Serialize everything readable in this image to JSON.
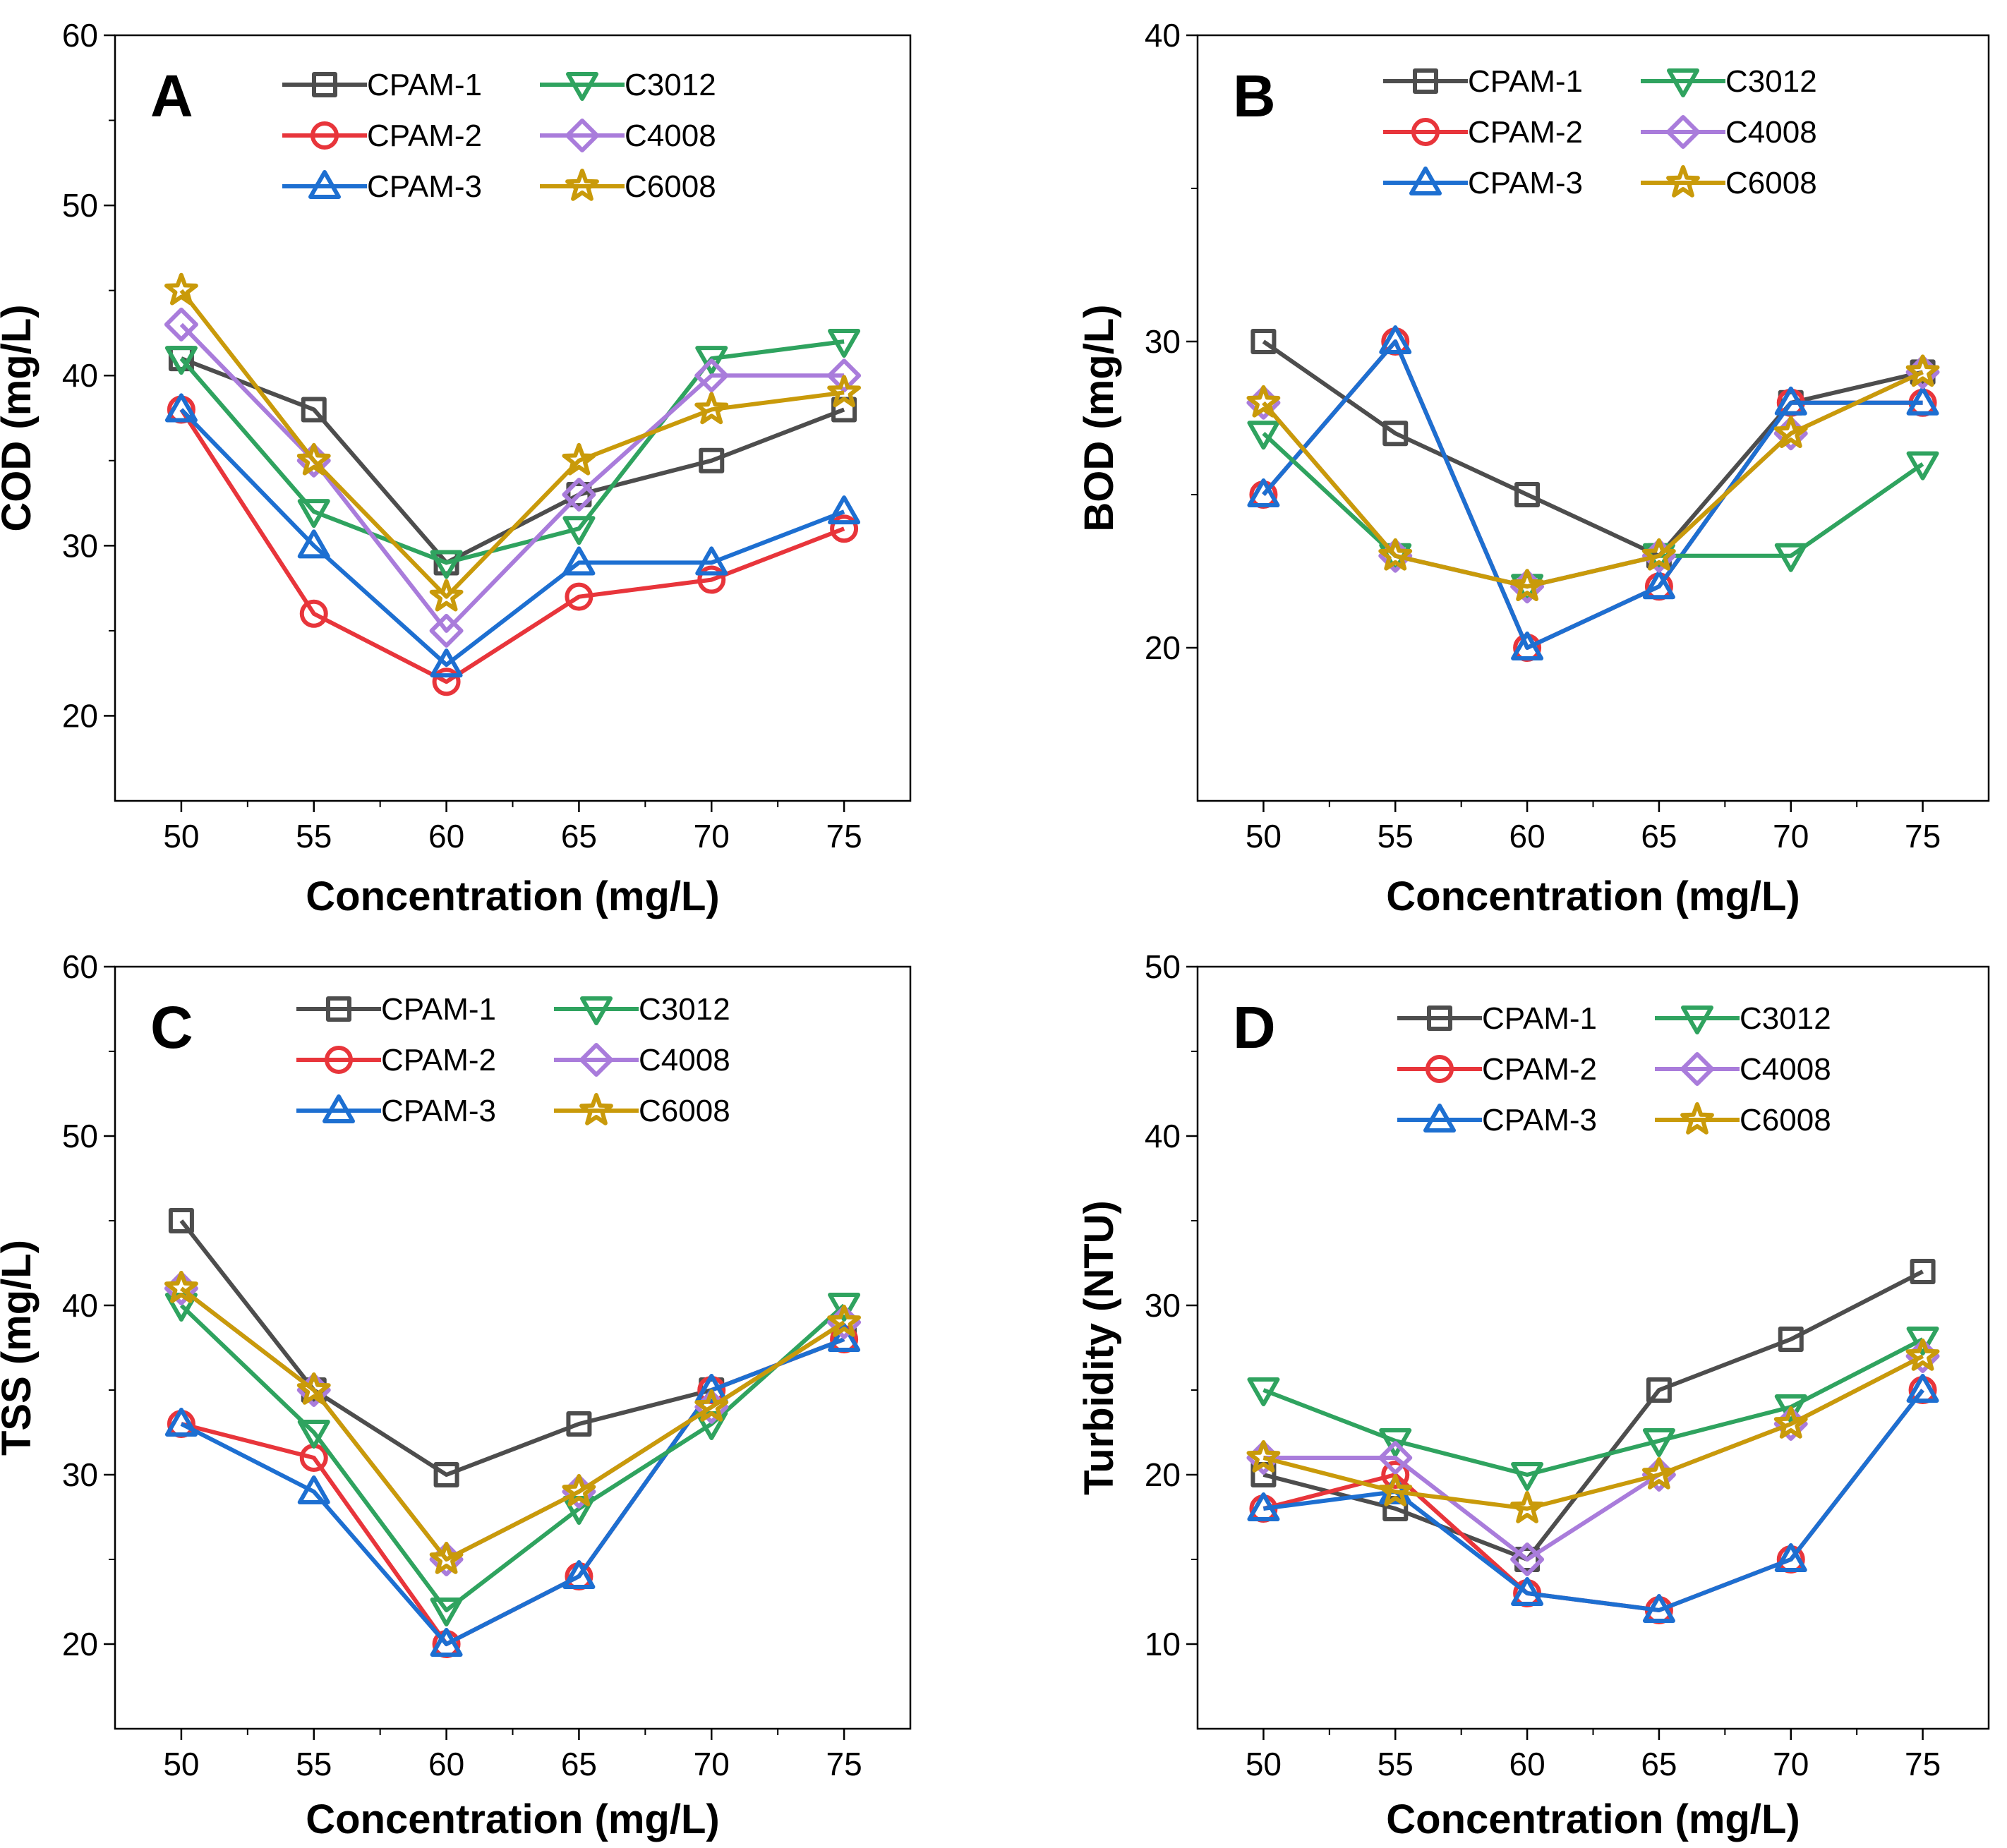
{
  "series_styles": [
    {
      "name": "CPAM-1",
      "color": "#4d4d4d",
      "marker": "square"
    },
    {
      "name": "CPAM-2",
      "color": "#e8353b",
      "marker": "circle"
    },
    {
      "name": "CPAM-3",
      "color": "#1d6fd1",
      "marker": "triangle-up"
    },
    {
      "name": "C3012",
      "color": "#2fa35f",
      "marker": "triangle-down"
    },
    {
      "name": "C4008",
      "color": "#a97cdb",
      "marker": "diamond"
    },
    {
      "name": "C6008",
      "color": "#c99a0a",
      "marker": "star"
    }
  ],
  "chart_data": [
    {
      "type": "line",
      "panel": "A",
      "title": "",
      "xlabel": "Concentration (mg/L)",
      "ylabel": "COD (mg/L)",
      "x": [
        50,
        55,
        60,
        65,
        70,
        75
      ],
      "xlim": [
        47.5,
        77.5
      ],
      "ylim": [
        15,
        60
      ],
      "yticks": [
        20,
        30,
        40,
        50,
        60
      ],
      "legend": "top-center",
      "series": [
        {
          "name": "CPAM-1",
          "values": [
            41,
            38,
            29,
            33,
            35,
            38
          ]
        },
        {
          "name": "CPAM-2",
          "values": [
            38,
            26,
            22,
            27,
            28,
            31
          ]
        },
        {
          "name": "CPAM-3",
          "values": [
            38,
            30,
            23,
            29,
            29,
            32
          ]
        },
        {
          "name": "C3012",
          "values": [
            41,
            32,
            29,
            31,
            41,
            42
          ]
        },
        {
          "name": "C4008",
          "values": [
            43,
            35,
            25,
            33,
            40,
            40
          ]
        },
        {
          "name": "C6008",
          "values": [
            45,
            35,
            27,
            35,
            38,
            39
          ]
        }
      ]
    },
    {
      "type": "line",
      "panel": "B",
      "title": "",
      "xlabel": "Concentration (mg/L)",
      "ylabel": "BOD (mg/L)",
      "x": [
        50,
        55,
        60,
        65,
        70,
        75
      ],
      "xlim": [
        47.5,
        77.5
      ],
      "ylim": [
        15,
        40
      ],
      "yticks": [
        20,
        30,
        40
      ],
      "legend": "top-center",
      "series": [
        {
          "name": "CPAM-1",
          "values": [
            30,
            27,
            25,
            23,
            28,
            29
          ]
        },
        {
          "name": "CPAM-2",
          "values": [
            25,
            30,
            20,
            22,
            28,
            28
          ]
        },
        {
          "name": "CPAM-3",
          "values": [
            25,
            30,
            20,
            22,
            28,
            28
          ]
        },
        {
          "name": "C3012",
          "values": [
            27,
            23,
            22,
            23,
            23,
            26
          ]
        },
        {
          "name": "C4008",
          "values": [
            28,
            23,
            22,
            23,
            27,
            29
          ]
        },
        {
          "name": "C6008",
          "values": [
            28,
            23,
            22,
            23,
            27,
            29
          ]
        }
      ]
    },
    {
      "type": "line",
      "panel": "C",
      "title": "",
      "xlabel": "Concentration (mg/L)",
      "ylabel": "TSS (mg/L)",
      "x": [
        50,
        55,
        60,
        65,
        70,
        75
      ],
      "xlim": [
        47.5,
        77.5
      ],
      "ylim": [
        15,
        60
      ],
      "yticks": [
        20,
        30,
        40,
        50,
        60
      ],
      "legend": "top-center",
      "series": [
        {
          "name": "CPAM-1",
          "values": [
            45,
            35,
            30,
            33,
            35,
            38
          ]
        },
        {
          "name": "CPAM-2",
          "values": [
            33,
            31,
            20,
            24,
            35,
            38
          ]
        },
        {
          "name": "CPAM-3",
          "values": [
            33,
            29,
            20,
            24,
            35,
            38
          ]
        },
        {
          "name": "C3012",
          "values": [
            40,
            32.5,
            22,
            28,
            33,
            40
          ]
        },
        {
          "name": "C4008",
          "values": [
            41,
            35,
            25,
            29,
            34,
            39
          ]
        },
        {
          "name": "C6008",
          "values": [
            41,
            35,
            25,
            29,
            34,
            39
          ]
        }
      ]
    },
    {
      "type": "line",
      "panel": "D",
      "title": "",
      "xlabel": "Concentration (mg/L)",
      "ylabel": "Turbidity (NTU)",
      "x": [
        50,
        55,
        60,
        65,
        70,
        75
      ],
      "xlim": [
        47.5,
        77.5
      ],
      "ylim": [
        5,
        50
      ],
      "yticks": [
        10,
        20,
        30,
        40,
        50
      ],
      "legend": "top-center",
      "series": [
        {
          "name": "CPAM-1",
          "values": [
            20,
            18,
            15,
            25,
            28,
            32
          ]
        },
        {
          "name": "CPAM-2",
          "values": [
            18,
            20,
            13,
            12,
            15,
            25
          ]
        },
        {
          "name": "CPAM-3",
          "values": [
            18,
            19,
            13,
            12,
            15,
            25
          ]
        },
        {
          "name": "C3012",
          "values": [
            25,
            22,
            20,
            22,
            24,
            28
          ]
        },
        {
          "name": "C4008",
          "values": [
            21,
            21,
            15,
            20,
            23,
            27
          ]
        },
        {
          "name": "C6008",
          "values": [
            21,
            19,
            18,
            20,
            23,
            27
          ]
        }
      ]
    }
  ]
}
